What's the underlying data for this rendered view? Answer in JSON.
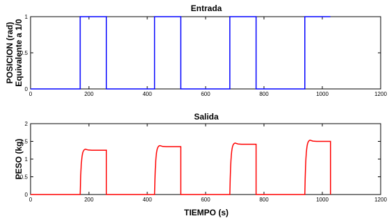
{
  "chart_data": [
    {
      "type": "line",
      "title": "Entrada",
      "ylabel": [
        "POSICION (rad)",
        "Equivalente a 1/0"
      ],
      "xlabel": "",
      "xlim": [
        0,
        1200
      ],
      "ylim": [
        0,
        1
      ],
      "xticks": [
        0,
        200,
        400,
        600,
        800,
        1000,
        1200
      ],
      "yticks": [
        0,
        0.5,
        1
      ],
      "grid": false,
      "series": [
        {
          "color": "#0000ff",
          "x": [
            0,
            170,
            170,
            260,
            260,
            425,
            425,
            515,
            515,
            683,
            683,
            773,
            773,
            940,
            940,
            1028
          ],
          "y": [
            0,
            0,
            1,
            1,
            0,
            0,
            1,
            1,
            0,
            0,
            1,
            1,
            0,
            0,
            1,
            1
          ]
        }
      ]
    },
    {
      "type": "line",
      "title": "Salida",
      "ylabel": [
        "PESO (kg)"
      ],
      "xlabel": "TIEMPO (s)",
      "xlim": [
        0,
        1200
      ],
      "ylim": [
        0,
        2
      ],
      "xticks": [
        0,
        200,
        400,
        600,
        800,
        1000,
        1200
      ],
      "yticks": [
        0,
        0.5,
        1,
        1.5,
        2
      ],
      "grid": false,
      "series": [
        {
          "color": "#ff0000",
          "pulses": [
            {
              "start": 170,
              "end": 260,
              "level": 1.25
            },
            {
              "start": 425,
              "end": 515,
              "level": 1.35
            },
            {
              "start": 683,
              "end": 773,
              "level": 1.42
            },
            {
              "start": 940,
              "end": 1028,
              "level": 1.5
            }
          ]
        }
      ]
    }
  ]
}
